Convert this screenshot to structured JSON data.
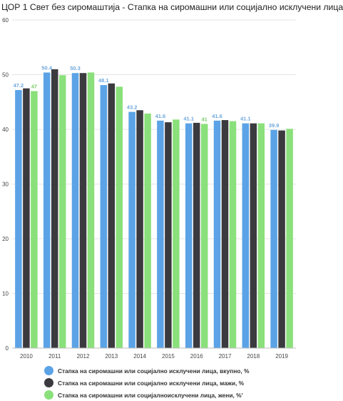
{
  "chart_data": {
    "type": "bar",
    "title": "ЦОР 1 Свет без сиромаштија - Стапка на сиромашни или социјално исклучени лица",
    "xlabel": "",
    "ylabel": "",
    "ylim": [
      0,
      60
    ],
    "yticks": [
      "0",
      "10",
      "20",
      "30",
      "40",
      "50",
      "60"
    ],
    "grid": true,
    "legend_position": "bottom",
    "categories": [
      "2010",
      "2011",
      "2012",
      "2013",
      "2014",
      "2015",
      "2016",
      "2017",
      "2018",
      "2019"
    ],
    "series": [
      {
        "name": "Стапка на сиромашни или   социјално исклучени лица,  вкупно, %",
        "color": "#5ba3e6",
        "label_color": "#6fa8dc",
        "values": [
          47.2,
          50.4,
          50.3,
          48.1,
          43.2,
          41.6,
          41.1,
          41.6,
          41.1,
          39.9
        ],
        "labels": [
          "47.2",
          "50.4",
          "50.3",
          "48.1",
          "43.2",
          "41.6",
          "41.1",
          "41.6",
          "41.1",
          "39.9"
        ]
      },
      {
        "name": "Стапка на сиромашни или   социјално исклучени лица, мажи, %",
        "color": "#3a3a3f",
        "values": [
          47.5,
          51.0,
          50.3,
          48.4,
          43.5,
          41.3,
          41.2,
          41.7,
          41.1,
          39.8
        ],
        "labels": []
      },
      {
        "name": "Стапка на сиромашни или   социјалноисклучени лица, жени, %'",
        "color": "#8ae07a",
        "label_color": "#7ccc6b",
        "values": [
          47.0,
          49.9,
          50.4,
          47.8,
          42.9,
          41.8,
          41.0,
          41.5,
          41.1,
          40.1
        ],
        "labels": [
          "47",
          "",
          "",
          "",
          "",
          "",
          "41",
          "",
          "",
          ""
        ]
      }
    ]
  }
}
